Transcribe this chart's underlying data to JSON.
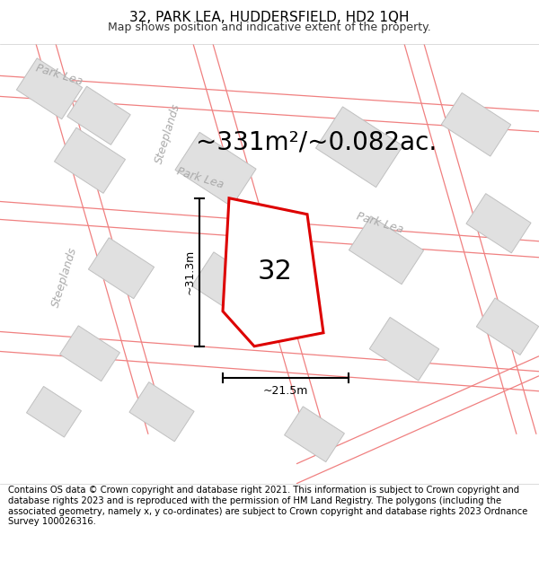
{
  "title": "32, PARK LEA, HUDDERSFIELD, HD2 1QH",
  "subtitle": "Map shows position and indicative extent of the property.",
  "area_text": "~331m²/~0.082ac.",
  "dim_width": "~21.5m",
  "dim_height": "~31.3m",
  "property_number": "32",
  "footer": "Contains OS data © Crown copyright and database right 2021. This information is subject to Crown copyright and database rights 2023 and is reproduced with the permission of HM Land Registry. The polygons (including the associated geometry, namely x, y co-ordinates) are subject to Crown copyright and database rights 2023 Ordnance Survey 100026316.",
  "map_bg": "#ffffff",
  "building_color": "#e0e0e0",
  "building_edge": "#c0c0c0",
  "property_fill": "#ffffff",
  "property_outline": "#dd0000",
  "road_line_color": "#f08080",
  "dim_line_color": "#000000",
  "text_gray": "#aaaaaa",
  "title_fontsize": 11,
  "subtitle_fontsize": 9,
  "area_fontsize": 20,
  "footer_fontsize": 7.2,
  "street_label_fontsize": 9
}
